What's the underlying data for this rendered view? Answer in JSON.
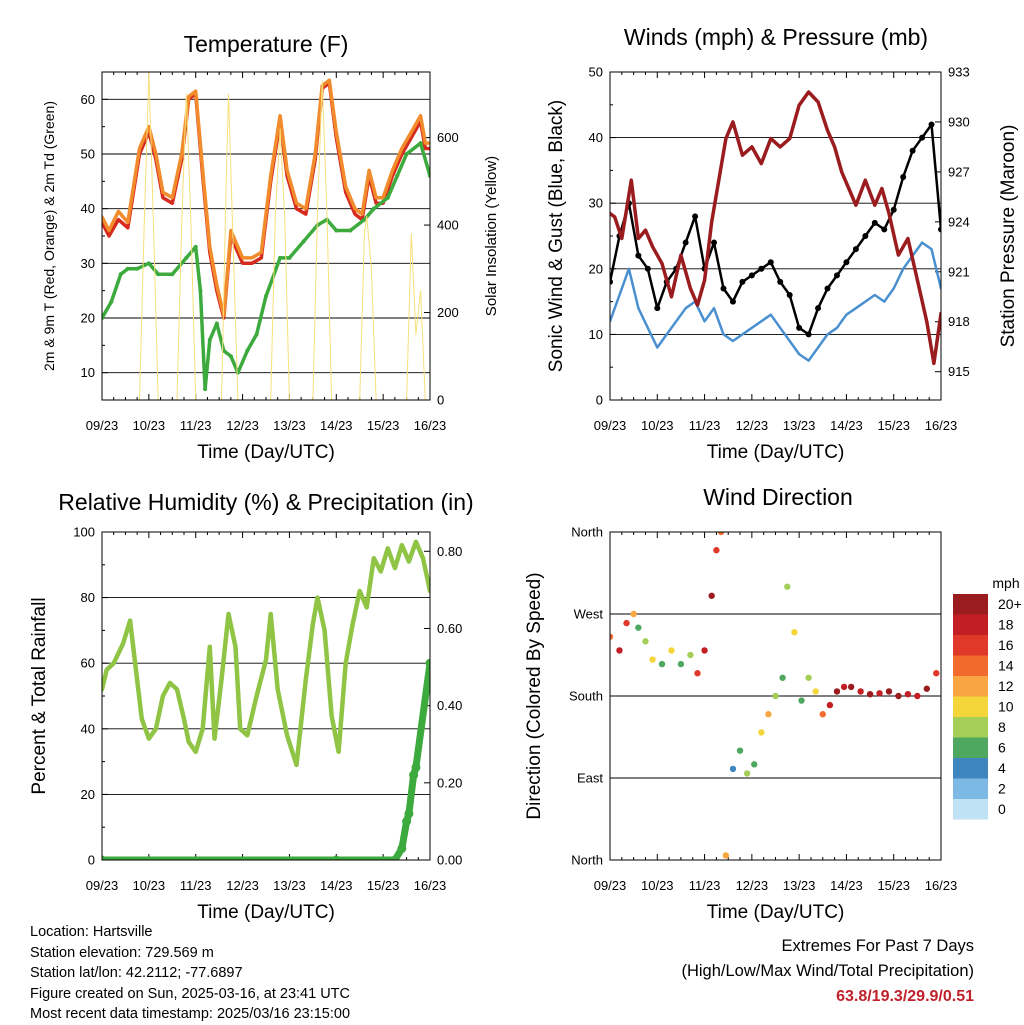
{
  "footer": {
    "location": "Location: Hartsville",
    "elevation": "Station elevation: 729.569 m",
    "latlon": "Station lat/lon: 42.2112; -77.6897",
    "created": "Figure created on Sun, 2025-03-16, at 23:41 UTC",
    "recent": "Most recent data timestamp: 2025/03/16 23:15:00",
    "extremes_title": "Extremes For Past 7 Days",
    "extremes_subtitle": "(High/Low/Max Wind/Total Precipitation)",
    "extremes_values": "63.8/19.3/29.9/0.51",
    "extremes_color": "#c0222c"
  },
  "legend": {
    "unit": "mph",
    "items": [
      {
        "label": "20+",
        "color": "#9b1c1f"
      },
      {
        "label": "18",
        "color": "#c21f24"
      },
      {
        "label": "16",
        "color": "#e0392a"
      },
      {
        "label": "14",
        "color": "#f26a2e"
      },
      {
        "label": "12",
        "color": "#f9a541"
      },
      {
        "label": "10",
        "color": "#f5d63a"
      },
      {
        "label": "8",
        "color": "#a3cf59"
      },
      {
        "label": "6",
        "color": "#4fa860"
      },
      {
        "label": "4",
        "color": "#3f86bf"
      },
      {
        "label": "2",
        "color": "#7cb9e4"
      },
      {
        "label": "0",
        "color": "#bfe2f5"
      }
    ]
  },
  "chart_data": [
    {
      "type": "line",
      "title": "Temperature (F)",
      "xlabel": "Time (Day/UTC)",
      "ylabel": "2m & 9m T (Red, Orange) & 2m Td (Green)",
      "ylabel_right": "Solar Insolation (Yellow)",
      "x_ticks": [
        "09/23",
        "10/23",
        "11/23",
        "12/23",
        "13/23",
        "14/23",
        "15/23",
        "16/23"
      ],
      "xlim": [
        0,
        7
      ],
      "ylim": [
        5,
        65
      ],
      "y_ticks": [
        10,
        20,
        30,
        40,
        50,
        60
      ],
      "ylim_right": [
        0,
        750
      ],
      "y_ticks_right": [
        0,
        200,
        400,
        600
      ],
      "grid": true,
      "series": [
        {
          "color": "#d62a1e",
          "axis": "left",
          "x": [
            0,
            0.15,
            0.35,
            0.55,
            0.8,
            1.0,
            1.15,
            1.3,
            1.5,
            1.7,
            1.85,
            2.0,
            2.15,
            2.3,
            2.45,
            2.6,
            2.75,
            2.85,
            3.0,
            3.2,
            3.4,
            3.6,
            3.8,
            3.95,
            4.15,
            4.35,
            4.55,
            4.7,
            4.85,
            5.0,
            5.2,
            5.4,
            5.55,
            5.7,
            5.85,
            6.0,
            6.2,
            6.4,
            6.6,
            6.8,
            6.9,
            7.0
          ],
          "y": [
            37.5,
            35,
            38,
            36.5,
            50,
            54,
            49,
            42,
            41,
            49,
            60,
            61,
            46,
            32,
            25,
            20,
            35,
            33,
            30,
            30,
            31,
            45,
            56,
            46,
            40,
            39,
            49,
            62,
            63,
            53,
            43,
            39,
            38,
            46,
            41,
            41,
            46,
            50,
            53,
            56,
            51,
            51
          ]
        },
        {
          "color": "#f28b2b",
          "axis": "left",
          "x": [
            0,
            0.15,
            0.35,
            0.55,
            0.8,
            1.0,
            1.15,
            1.3,
            1.5,
            1.7,
            1.85,
            2.0,
            2.15,
            2.3,
            2.45,
            2.6,
            2.75,
            2.85,
            3.0,
            3.2,
            3.4,
            3.6,
            3.8,
            3.95,
            4.15,
            4.35,
            4.55,
            4.7,
            4.85,
            5.0,
            5.2,
            5.4,
            5.55,
            5.7,
            5.85,
            6.0,
            6.2,
            6.4,
            6.6,
            6.8,
            6.9,
            7.0
          ],
          "y": [
            38.5,
            36,
            39.5,
            37.5,
            51,
            55,
            50,
            43,
            42,
            50,
            60.5,
            61.5,
            47,
            33,
            26,
            20.5,
            36,
            34,
            31,
            31,
            32,
            46,
            57,
            47,
            41,
            40,
            50,
            62.5,
            63.5,
            54,
            44,
            40,
            39,
            47,
            42,
            42,
            47,
            51,
            54,
            57,
            52,
            52
          ]
        },
        {
          "color": "#3caa3c",
          "axis": "left",
          "x": [
            0,
            0.2,
            0.4,
            0.55,
            0.75,
            1.0,
            1.2,
            1.5,
            1.8,
            2.0,
            2.1,
            2.2,
            2.3,
            2.45,
            2.6,
            2.75,
            2.9,
            3.1,
            3.3,
            3.5,
            3.8,
            4.0,
            4.3,
            4.6,
            4.8,
            5.0,
            5.3,
            5.6,
            5.8,
            6.1,
            6.3,
            6.5,
            6.8,
            7.0
          ],
          "y": [
            20,
            23,
            28,
            29,
            29,
            30,
            28,
            28,
            31,
            33,
            25,
            7,
            16,
            19,
            14,
            13,
            10,
            14,
            17,
            24,
            31,
            31,
            34,
            37,
            38,
            36,
            36,
            38,
            40,
            42,
            46,
            50,
            52,
            46
          ]
        },
        {
          "color": "#f6e07a",
          "axis": "right",
          "x": [
            0.8,
            0.9,
            1.0,
            1.1,
            1.2,
            1.6,
            1.7,
            1.8,
            1.9,
            2.0,
            2.55,
            2.65,
            2.7,
            2.8,
            2.9,
            3.6,
            3.7,
            3.8,
            3.9,
            4.0,
            4.5,
            4.6,
            4.7,
            4.8,
            4.9,
            5.5,
            5.6,
            5.65,
            5.75,
            5.85,
            6.5,
            6.6,
            6.7,
            6.8,
            6.9
          ],
          "y": [
            0,
            400,
            750,
            400,
            0,
            0,
            400,
            700,
            400,
            0,
            0,
            500,
            700,
            350,
            0,
            0,
            430,
            620,
            420,
            0,
            0,
            430,
            730,
            430,
            0,
            0,
            380,
            420,
            300,
            0,
            0,
            380,
            150,
            250,
            0
          ]
        }
      ]
    },
    {
      "type": "line",
      "title": "Winds (mph) & Pressure (mb)",
      "xlabel": "Time (Day/UTC)",
      "ylabel": "Sonic Wind & Gust (Blue, Black)",
      "ylabel_right": "Station Pressure (Maroon)",
      "x_ticks": [
        "09/23",
        "10/23",
        "11/23",
        "12/23",
        "13/23",
        "14/23",
        "15/23",
        "16/23"
      ],
      "xlim": [
        0,
        7
      ],
      "ylim": [
        0,
        50
      ],
      "y_ticks": [
        0,
        10,
        20,
        30,
        40,
        50
      ],
      "ylim_right": [
        913.3,
        933
      ],
      "y_ticks_right": [
        915,
        918,
        921,
        924,
        927,
        930,
        933
      ],
      "grid": true,
      "series": [
        {
          "color": "#4a90d0",
          "axis": "left",
          "x": [
            0,
            0.2,
            0.4,
            0.6,
            0.8,
            1.0,
            1.2,
            1.4,
            1.6,
            1.8,
            2.0,
            2.2,
            2.4,
            2.6,
            2.8,
            3.0,
            3.2,
            3.4,
            3.6,
            3.8,
            4.0,
            4.2,
            4.4,
            4.6,
            4.8,
            5.0,
            5.2,
            5.4,
            5.6,
            5.8,
            6.0,
            6.2,
            6.4,
            6.6,
            6.8,
            7.0
          ],
          "y": [
            12,
            16,
            20,
            14,
            11,
            8,
            10,
            12,
            14,
            15,
            12,
            14,
            10,
            9,
            10,
            11,
            12,
            13,
            11,
            9,
            7,
            6,
            8,
            10,
            11,
            13,
            14,
            15,
            16,
            15,
            17,
            20,
            22,
            24,
            23,
            17
          ]
        },
        {
          "color": "#000000",
          "axis": "left",
          "x": [
            0,
            0.2,
            0.4,
            0.6,
            0.8,
            1.0,
            1.2,
            1.4,
            1.6,
            1.8,
            2.0,
            2.2,
            2.4,
            2.6,
            2.8,
            3.0,
            3.2,
            3.4,
            3.6,
            3.8,
            4.0,
            4.2,
            4.4,
            4.6,
            4.8,
            5.0,
            5.2,
            5.4,
            5.6,
            5.8,
            6.0,
            6.2,
            6.4,
            6.6,
            6.8,
            7.0
          ],
          "y": [
            18,
            25,
            30,
            22,
            20,
            14,
            18,
            20,
            24,
            28,
            20,
            24,
            17,
            15,
            18,
            19,
            20,
            21,
            18,
            16,
            11,
            10,
            14,
            17,
            19,
            21,
            23,
            25,
            27,
            26,
            29,
            34,
            38,
            40,
            42,
            26
          ]
        },
        {
          "color": "#9b1c1f",
          "axis": "right",
          "x": [
            0,
            0.1,
            0.25,
            0.45,
            0.6,
            0.75,
            0.9,
            1.1,
            1.3,
            1.5,
            1.7,
            1.85,
            2.0,
            2.15,
            2.3,
            2.45,
            2.6,
            2.8,
            3.0,
            3.2,
            3.4,
            3.6,
            3.8,
            4.0,
            4.2,
            4.4,
            4.6,
            4.75,
            4.9,
            5.05,
            5.2,
            5.4,
            5.6,
            5.75,
            5.9,
            6.1,
            6.3,
            6.5,
            6.7,
            6.85,
            7.0
          ],
          "y": [
            924.5,
            924.3,
            923,
            926.5,
            923,
            923.5,
            922.5,
            921.5,
            919.5,
            922,
            920,
            919,
            920.5,
            924,
            926.5,
            929,
            930,
            928,
            928.5,
            927.5,
            929,
            928.5,
            929,
            931,
            931.8,
            931.2,
            929.5,
            928.5,
            927,
            926,
            925,
            926.5,
            925,
            926,
            924.5,
            922,
            923,
            920.5,
            918,
            915.5,
            918.5
          ]
        }
      ]
    },
    {
      "type": "line",
      "title": "Relative Humidity (%) & Precipitation (in)",
      "xlabel": "Time (Day/UTC)",
      "ylabel": "Percent & Total Rainfall",
      "x_ticks": [
        "09/23",
        "10/23",
        "11/23",
        "12/23",
        "13/23",
        "14/23",
        "15/23",
        "16/23"
      ],
      "xlim": [
        0,
        7
      ],
      "ylim": [
        0,
        100
      ],
      "y_ticks": [
        0,
        20,
        40,
        60,
        80,
        100
      ],
      "ylim_right": [
        0,
        0.85
      ],
      "y_ticks_right": [
        "0.00",
        "0.20",
        "0.40",
        "0.60",
        "0.80"
      ],
      "grid": true,
      "series": [
        {
          "color": "#8fc444",
          "axis": "left",
          "x": [
            0,
            0.1,
            0.25,
            0.45,
            0.6,
            0.75,
            0.85,
            1.0,
            1.15,
            1.3,
            1.45,
            1.6,
            1.75,
            1.85,
            2.0,
            2.15,
            2.3,
            2.4,
            2.55,
            2.7,
            2.85,
            2.95,
            3.1,
            3.3,
            3.5,
            3.6,
            3.75,
            3.95,
            4.15,
            4.35,
            4.5,
            4.6,
            4.75,
            4.9,
            5.05,
            5.2,
            5.35,
            5.5,
            5.65,
            5.8,
            5.95,
            6.1,
            6.25,
            6.4,
            6.55,
            6.7,
            6.85,
            7.0
          ],
          "y": [
            52,
            58,
            60,
            66,
            73,
            55,
            43,
            37,
            40,
            50,
            54,
            52,
            43,
            36,
            33,
            40,
            65,
            37,
            55,
            75,
            65,
            40,
            38,
            50,
            61,
            75,
            52,
            38,
            29,
            55,
            72,
            80,
            70,
            44,
            33,
            60,
            72,
            82,
            77,
            92,
            88,
            95,
            89,
            96,
            91,
            97,
            92,
            82
          ]
        },
        {
          "color": "#3caa3c",
          "axis": "right",
          "x": [
            0,
            5.0,
            6.25,
            6.4,
            6.5,
            6.55,
            6.65,
            6.7,
            7.0
          ],
          "y": [
            0,
            0,
            0,
            0.03,
            0.1,
            0.12,
            0.22,
            0.24,
            0.51
          ]
        }
      ]
    },
    {
      "type": "scatter",
      "title": "Wind Direction",
      "xlabel": "Time (Day/UTC)",
      "ylabel": "Direction (Colored By Speed)",
      "x_ticks": [
        "09/23",
        "10/23",
        "11/23",
        "12/23",
        "13/23",
        "14/23",
        "15/23",
        "16/23"
      ],
      "xlim": [
        0,
        7
      ],
      "y_tick_labels": [
        "North",
        "East",
        "South",
        "West",
        "North"
      ],
      "y_tick_values": [
        0,
        90,
        180,
        270,
        360
      ],
      "ylim": [
        0,
        360
      ],
      "grid": true,
      "series": [
        {
          "x": [
            0,
            0.2,
            0.35,
            0.5,
            0.6,
            0.75,
            0.9,
            1.1,
            1.3,
            1.5,
            1.7,
            1.85,
            2.0,
            2.15,
            2.25,
            2.35,
            2.45,
            2.6,
            2.75,
            2.9,
            3.05,
            3.2,
            3.35,
            3.5,
            3.65,
            3.75,
            3.9,
            4.05,
            4.2,
            4.35,
            4.5,
            4.65,
            4.8,
            4.95,
            5.1,
            5.3,
            5.5,
            5.7,
            5.9,
            6.1,
            6.3,
            6.5,
            6.7,
            6.9
          ],
          "y": [
            245,
            230,
            260,
            270,
            255,
            240,
            220,
            215,
            230,
            215,
            225,
            205,
            230,
            290,
            340,
            360,
            5,
            100,
            120,
            95,
            105,
            140,
            160,
            180,
            200,
            300,
            250,
            175,
            200,
            185,
            160,
            170,
            185,
            190,
            190,
            185,
            182,
            183,
            185,
            180,
            182,
            180,
            188,
            205
          ],
          "speed": [
            14,
            18,
            16,
            12,
            6,
            8,
            10,
            6,
            10,
            6,
            8,
            16,
            18,
            20,
            16,
            14,
            12,
            4,
            6,
            8,
            6,
            10,
            12,
            8,
            6,
            8,
            10,
            6,
            8,
            10,
            14,
            18,
            20,
            18,
            20,
            18,
            20,
            18,
            20,
            20,
            18,
            18,
            20,
            16
          ]
        }
      ]
    }
  ]
}
